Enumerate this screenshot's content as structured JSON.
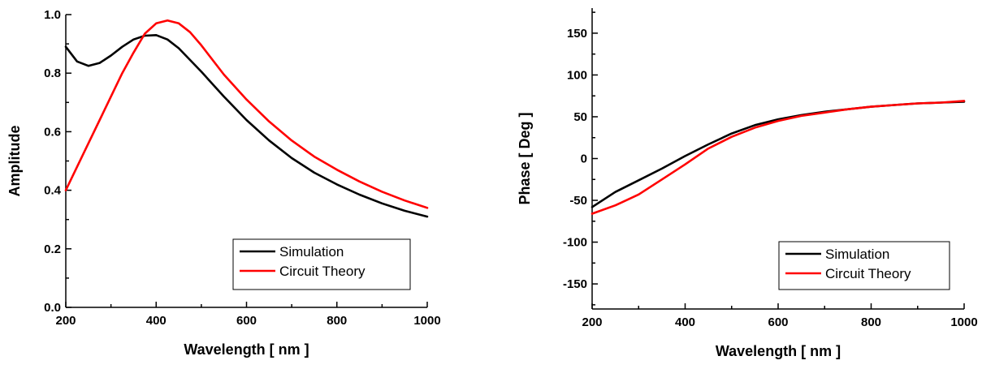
{
  "chart_data": [
    {
      "type": "line",
      "title": "",
      "xlabel": "Wavelength [ nm ]",
      "ylabel": "Amplitude",
      "xlim": [
        200,
        1000
      ],
      "ylim": [
        0,
        1.0
      ],
      "xticks": [
        200,
        400,
        600,
        800,
        1000
      ],
      "yticks": [
        0.0,
        0.2,
        0.4,
        0.6,
        0.8,
        1.0
      ],
      "ytick_labels": [
        "0.0",
        "0.2",
        "0.4",
        "0.6",
        "0.8",
        "1.0"
      ],
      "legend_position": "bottom-right",
      "grid": false,
      "series": [
        {
          "name": "Simulation",
          "color": "#000000",
          "x": [
            200,
            225,
            250,
            275,
            300,
            325,
            350,
            375,
            400,
            425,
            450,
            500,
            550,
            600,
            650,
            700,
            750,
            800,
            850,
            900,
            950,
            1000
          ],
          "y": [
            0.89,
            0.84,
            0.825,
            0.835,
            0.86,
            0.89,
            0.915,
            0.928,
            0.93,
            0.915,
            0.885,
            0.805,
            0.72,
            0.64,
            0.57,
            0.51,
            0.46,
            0.42,
            0.385,
            0.355,
            0.33,
            0.31
          ]
        },
        {
          "name": "Circuit Theory",
          "color": "#ff0000",
          "x": [
            200,
            225,
            250,
            275,
            300,
            325,
            350,
            375,
            400,
            425,
            450,
            475,
            500,
            550,
            600,
            650,
            700,
            750,
            800,
            850,
            900,
            950,
            1000
          ],
          "y": [
            0.4,
            0.48,
            0.56,
            0.64,
            0.72,
            0.8,
            0.87,
            0.935,
            0.97,
            0.98,
            0.97,
            0.94,
            0.895,
            0.795,
            0.71,
            0.635,
            0.57,
            0.515,
            0.47,
            0.43,
            0.395,
            0.365,
            0.34
          ]
        }
      ]
    },
    {
      "type": "line",
      "title": "",
      "xlabel": "Wavelength [ nm ]",
      "ylabel": "Phase [ Deg ]",
      "xlim": [
        200,
        1000
      ],
      "ylim": [
        -180,
        180
      ],
      "xticks": [
        200,
        400,
        600,
        800,
        1000
      ],
      "yticks": [
        -150,
        -100,
        -50,
        0,
        50,
        100,
        150
      ],
      "ytick_labels": [
        "-150",
        "-100",
        "-50",
        "0",
        "50",
        "100",
        "150"
      ],
      "legend_position": "bottom-right",
      "grid": false,
      "series": [
        {
          "name": "Simulation",
          "color": "#000000",
          "x": [
            200,
            250,
            300,
            350,
            400,
            450,
            500,
            550,
            600,
            650,
            700,
            750,
            800,
            850,
            900,
            950,
            1000
          ],
          "y": [
            -58,
            -40,
            -26,
            -12,
            3,
            17,
            30,
            40,
            47,
            52,
            56,
            59,
            62,
            64,
            66,
            67,
            68
          ]
        },
        {
          "name": "Circuit Theory",
          "color": "#ff0000",
          "x": [
            200,
            250,
            300,
            350,
            400,
            450,
            500,
            550,
            600,
            650,
            700,
            750,
            800,
            850,
            900,
            950,
            1000
          ],
          "y": [
            -66,
            -56,
            -43,
            -25,
            -7,
            12,
            26,
            37,
            45,
            51,
            55,
            59,
            62,
            64,
            66,
            67,
            69
          ]
        }
      ]
    }
  ]
}
